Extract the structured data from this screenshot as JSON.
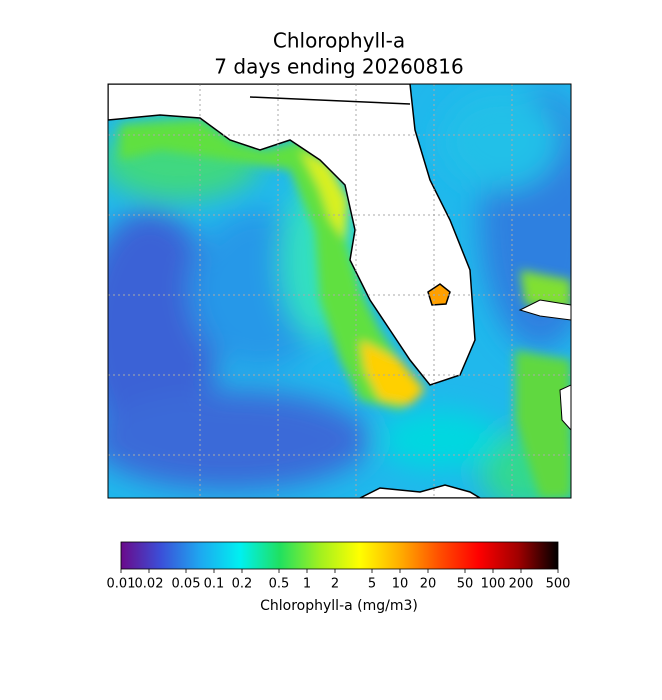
{
  "map": {
    "title": [
      "Chlorophyll-a",
      "7 days ending 20260816"
    ],
    "colorbar": {
      "label": "Chlorophyll-a (mg/m3)",
      "lim": [
        0.01,
        500
      ],
      "log": true,
      "ticks": [
        0.01,
        0.02,
        0.05,
        0.1,
        0.2,
        0.5,
        1,
        2,
        5,
        10,
        20,
        50,
        100,
        200,
        500
      ],
      "colors": [
        "#6a0a8a",
        "#3b4fd8",
        "#1ea8f0",
        "#00f0f0",
        "#20e060",
        "#a0f020",
        "#ffff00",
        "#ffb000",
        "#ff5000",
        "#ff0000",
        "#a00000",
        "#000000"
      ]
    }
  }
}
